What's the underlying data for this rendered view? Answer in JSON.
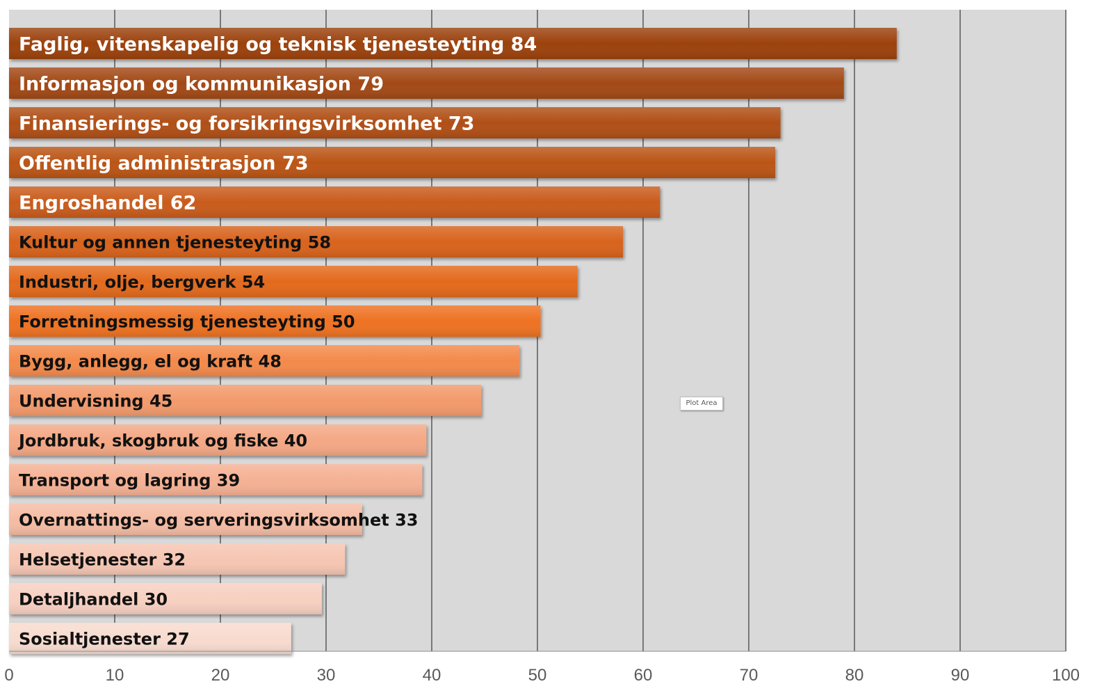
{
  "chart_data": {
    "type": "bar",
    "orientation": "horizontal",
    "xlim": [
      0,
      100
    ],
    "x_ticks": [
      0,
      10,
      20,
      30,
      40,
      50,
      60,
      70,
      80,
      90,
      100
    ],
    "x_tick_labels": [
      "0",
      "10",
      "20",
      "30",
      "40",
      "50",
      "60",
      "70",
      "80",
      "90",
      "100"
    ],
    "grid": true,
    "legend": "none",
    "background_color": "#d9d9d9",
    "bars": [
      {
        "label": "Faglig, vitenskapelig og teknisk tjenesteyting 84",
        "value": 84,
        "color": "#9c4311"
      },
      {
        "label": "Informasjon og kommunikasjon 79",
        "value": 79,
        "color": "#a34813"
      },
      {
        "label": "Finansierings- og forsikringsvirksomhet 73",
        "value": 73,
        "color": "#b04f16"
      },
      {
        "label": "Offentlig administrasjon 73",
        "value": 72.5,
        "color": "#bb5518"
      },
      {
        "label": "Engroshandel 62",
        "value": 61.6,
        "color": "#c95c1a"
      },
      {
        "label": "Kultur og annen tjenesteyting 58",
        "value": 58.1,
        "color": "#d8641c"
      },
      {
        "label": "Industri, olje, bergverk 54",
        "value": 53.8,
        "color": "#e36a1e"
      },
      {
        "label": "Forretningsmessig tjenesteyting 50",
        "value": 50.3,
        "color": "#ee7222"
      },
      {
        "label": " Bygg, anlegg, el og kraft 48",
        "value": 48.3,
        "color": "#f38a4c"
      },
      {
        "label": "Undervisning 45",
        "value": 44.7,
        "color": "#f39a6c"
      },
      {
        "label": "Jordbruk, skogbruk og fiske 40",
        "value": 39.5,
        "color": "#f4a885"
      },
      {
        "label": "Transport og lagring 39",
        "value": 39.1,
        "color": "#f5b194"
      },
      {
        "label": "Overnattings- og serveringsvirksomhet 33",
        "value": 33.4,
        "color": "#f5bca4"
      },
      {
        "label": "Helsetjenester 32",
        "value": 31.8,
        "color": "#f6c6b3"
      },
      {
        "label": "Detaljhandel 30",
        "value": 29.6,
        "color": "#f7d0c1"
      },
      {
        "label": "Sosialtjenester 27",
        "value": 26.7,
        "color": "#f8dbcf"
      }
    ]
  },
  "plot_area_tooltip": "Plot Area"
}
